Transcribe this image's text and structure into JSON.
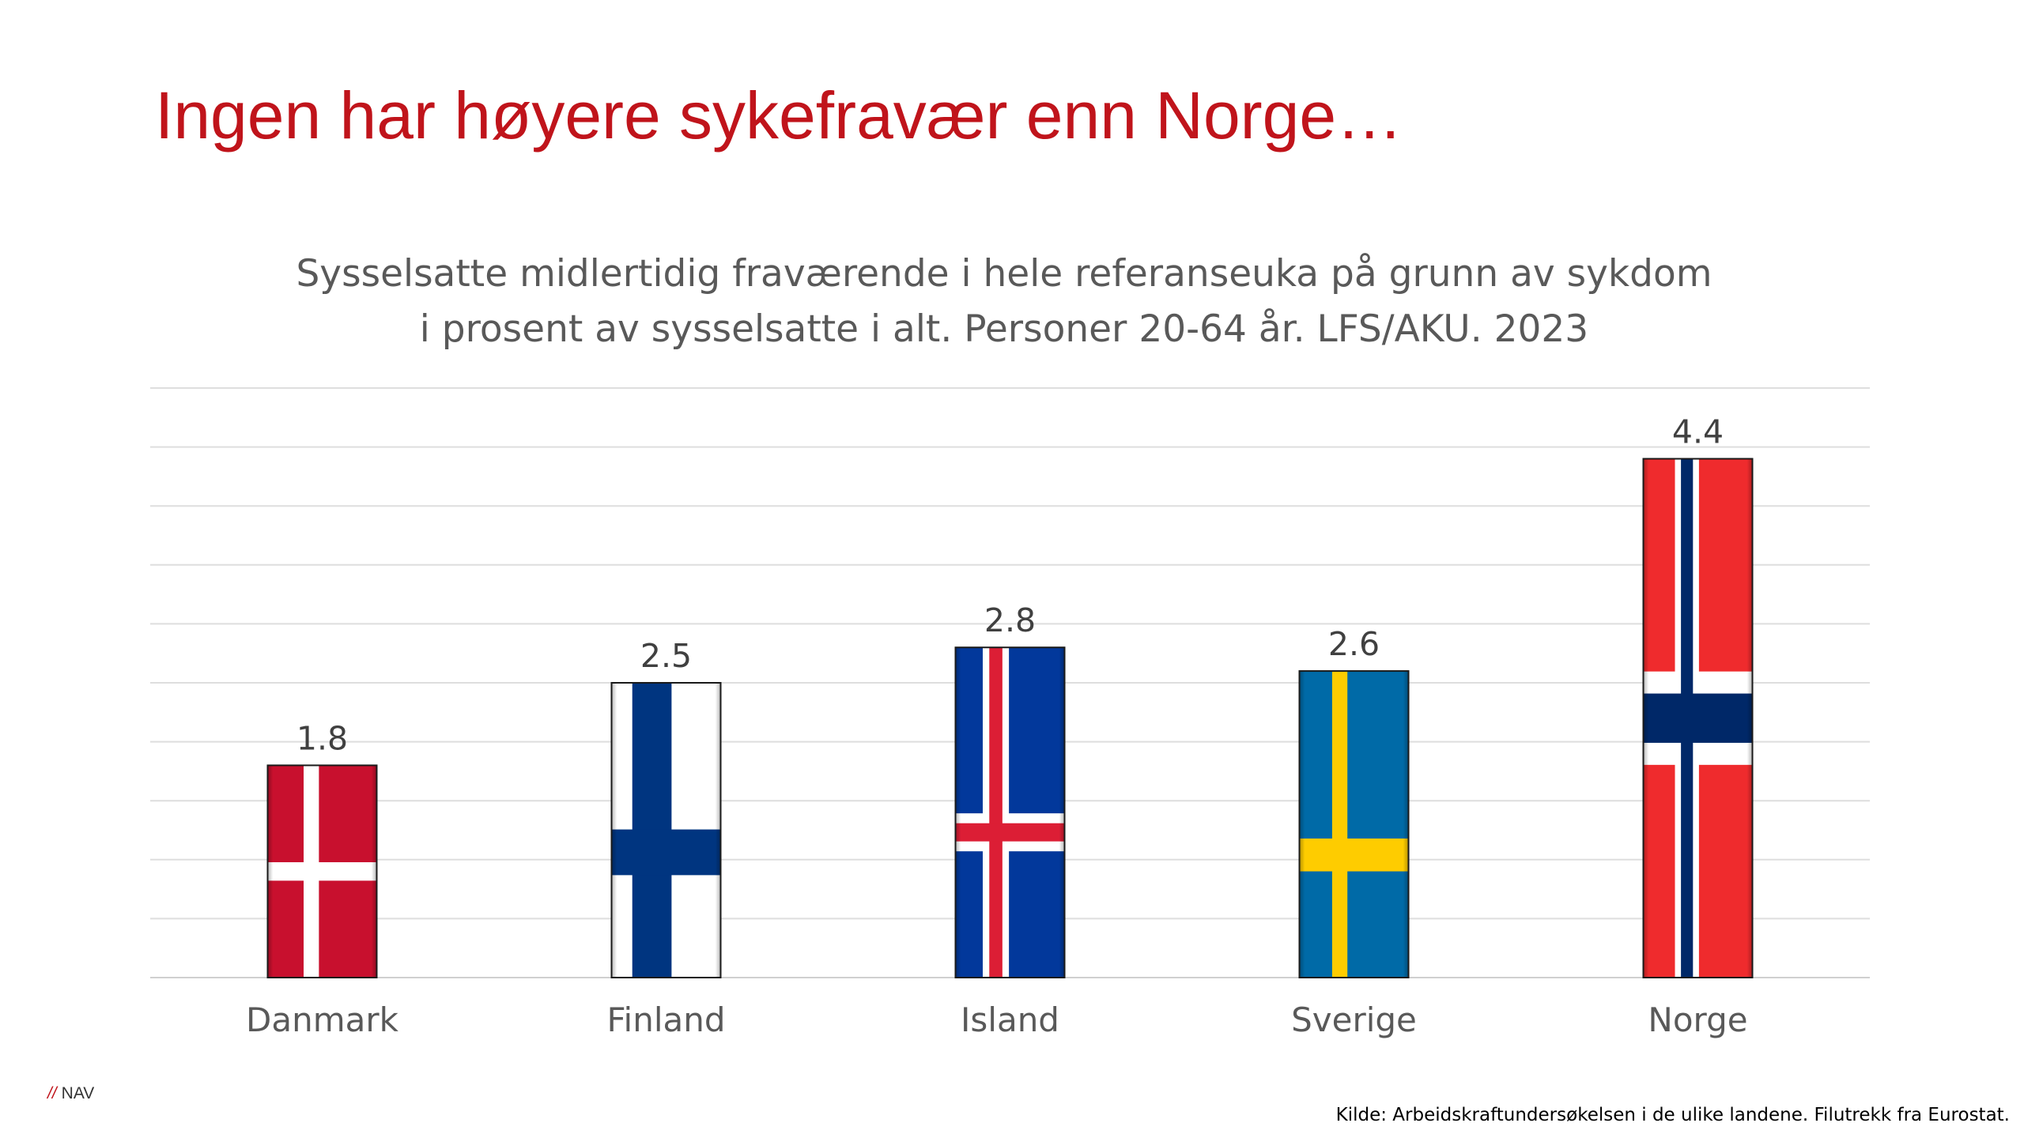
{
  "slide": {
    "title": "Ingen har høyere sykefravær enn Norge…",
    "brand": "NAV",
    "brand_prefix": "//",
    "source": "Kilde: Arbeidskraftundersøkelsen i de ulike landene. Filutrekk fra Eurostat."
  },
  "chart_data": {
    "type": "bar",
    "title_line1": "Sysselsatte midlertidig fraværende i hele referanseuka på grunn av sykdom",
    "title_line2": "i prosent av sysselsatte i alt. Personer 20-64 år. LFS/AKU. 2023",
    "categories": [
      "Danmark",
      "Finland",
      "Island",
      "Sverige",
      "Norge"
    ],
    "values": [
      1.8,
      2.5,
      2.8,
      2.6,
      4.4
    ],
    "value_labels": [
      "1.8",
      "2.5",
      "2.8",
      "2.6",
      "4.4"
    ],
    "flags": [
      "denmark-flag",
      "finland-flag",
      "iceland-flag",
      "sweden-flag",
      "norway-flag"
    ],
    "ylim": [
      0,
      5
    ],
    "grid": true,
    "legend": "none",
    "xlabel": "",
    "ylabel": ""
  }
}
